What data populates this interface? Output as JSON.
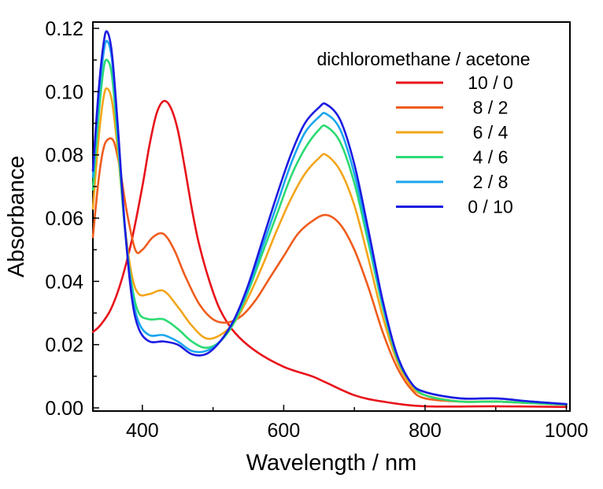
{
  "chart_data": {
    "type": "line",
    "title": "",
    "xlabel": "Wavelength  / nm",
    "ylabel": "Absorbance",
    "xlim": [
      330,
      1005
    ],
    "ylim": [
      -0.001,
      0.122
    ],
    "x_ticks": [
      "400",
      "600",
      "800",
      "1000"
    ],
    "y_ticks": [
      "0.00",
      "0.02",
      "0.04",
      "0.06",
      "0.08",
      "0.10",
      "0.12"
    ],
    "grid": false,
    "legend_title": "dichloromethane / acetone",
    "legend_position": "top-right",
    "series": [
      {
        "name": "10 / 0",
        "color": "#e8121b",
        "points": [
          [
            330,
            0.024
          ],
          [
            340,
            0.026
          ],
          [
            355,
            0.031
          ],
          [
            370,
            0.04
          ],
          [
            385,
            0.053
          ],
          [
            400,
            0.07
          ],
          [
            410,
            0.083
          ],
          [
            420,
            0.093
          ],
          [
            430,
            0.097
          ],
          [
            440,
            0.095
          ],
          [
            450,
            0.088
          ],
          [
            460,
            0.076
          ],
          [
            470,
            0.063
          ],
          [
            480,
            0.052
          ],
          [
            495,
            0.04
          ],
          [
            510,
            0.031
          ],
          [
            530,
            0.024
          ],
          [
            560,
            0.018
          ],
          [
            600,
            0.013
          ],
          [
            640,
            0.01
          ],
          [
            660,
            0.008
          ],
          [
            700,
            0.004
          ],
          [
            740,
            0.002
          ],
          [
            800,
            0.0005
          ],
          [
            900,
            0.0005
          ],
          [
            1000,
            0.0003
          ]
        ]
      },
      {
        "name": "8 / 2",
        "color": "#ef5c1c",
        "points": [
          [
            330,
            0.054
          ],
          [
            338,
            0.072
          ],
          [
            345,
            0.082
          ],
          [
            352,
            0.085
          ],
          [
            360,
            0.084
          ],
          [
            368,
            0.076
          ],
          [
            378,
            0.062
          ],
          [
            390,
            0.05
          ],
          [
            400,
            0.05
          ],
          [
            415,
            0.054
          ],
          [
            430,
            0.055
          ],
          [
            445,
            0.05
          ],
          [
            460,
            0.042
          ],
          [
            480,
            0.033
          ],
          [
            500,
            0.028
          ],
          [
            520,
            0.027
          ],
          [
            540,
            0.029
          ],
          [
            560,
            0.034
          ],
          [
            580,
            0.041
          ],
          [
            600,
            0.048
          ],
          [
            620,
            0.055
          ],
          [
            640,
            0.059
          ],
          [
            660,
            0.061
          ],
          [
            680,
            0.058
          ],
          [
            700,
            0.05
          ],
          [
            720,
            0.038
          ],
          [
            740,
            0.024
          ],
          [
            760,
            0.013
          ],
          [
            780,
            0.006
          ],
          [
            800,
            0.003
          ],
          [
            850,
            0.002
          ],
          [
            900,
            0.002
          ],
          [
            950,
            0.0015
          ],
          [
            1000,
            0.001
          ]
        ]
      },
      {
        "name": "6 / 4",
        "color": "#f3a51a",
        "points": [
          [
            330,
            0.063
          ],
          [
            338,
            0.085
          ],
          [
            345,
            0.098
          ],
          [
            350,
            0.101
          ],
          [
            357,
            0.097
          ],
          [
            365,
            0.082
          ],
          [
            375,
            0.058
          ],
          [
            385,
            0.042
          ],
          [
            395,
            0.036
          ],
          [
            410,
            0.036
          ],
          [
            430,
            0.037
          ],
          [
            450,
            0.032
          ],
          [
            470,
            0.026
          ],
          [
            490,
            0.022
          ],
          [
            510,
            0.023
          ],
          [
            530,
            0.027
          ],
          [
            550,
            0.035
          ],
          [
            570,
            0.045
          ],
          [
            590,
            0.056
          ],
          [
            610,
            0.066
          ],
          [
            630,
            0.074
          ],
          [
            650,
            0.079
          ],
          [
            660,
            0.08
          ],
          [
            680,
            0.075
          ],
          [
            700,
            0.064
          ],
          [
            720,
            0.047
          ],
          [
            740,
            0.029
          ],
          [
            760,
            0.015
          ],
          [
            780,
            0.007
          ],
          [
            800,
            0.004
          ],
          [
            850,
            0.002
          ],
          [
            900,
            0.002
          ],
          [
            950,
            0.0015
          ],
          [
            1000,
            0.001
          ]
        ]
      },
      {
        "name": "4 / 6",
        "color": "#2bdb73",
        "points": [
          [
            330,
            0.069
          ],
          [
            338,
            0.092
          ],
          [
            345,
            0.107
          ],
          [
            350,
            0.11
          ],
          [
            357,
            0.105
          ],
          [
            365,
            0.085
          ],
          [
            375,
            0.057
          ],
          [
            385,
            0.039
          ],
          [
            395,
            0.03
          ],
          [
            410,
            0.028
          ],
          [
            430,
            0.028
          ],
          [
            450,
            0.025
          ],
          [
            470,
            0.021
          ],
          [
            490,
            0.019
          ],
          [
            510,
            0.021
          ],
          [
            530,
            0.027
          ],
          [
            550,
            0.037
          ],
          [
            570,
            0.049
          ],
          [
            590,
            0.061
          ],
          [
            610,
            0.073
          ],
          [
            630,
            0.082
          ],
          [
            650,
            0.088
          ],
          [
            660,
            0.089
          ],
          [
            680,
            0.084
          ],
          [
            700,
            0.071
          ],
          [
            720,
            0.052
          ],
          [
            740,
            0.032
          ],
          [
            760,
            0.016
          ],
          [
            780,
            0.008
          ],
          [
            800,
            0.004
          ],
          [
            850,
            0.002
          ],
          [
            900,
            0.002
          ],
          [
            950,
            0.0015
          ],
          [
            1000,
            0.001
          ]
        ]
      },
      {
        "name": "2 / 8",
        "color": "#1aa6ee",
        "points": [
          [
            330,
            0.073
          ],
          [
            338,
            0.097
          ],
          [
            345,
            0.112
          ],
          [
            350,
            0.116
          ],
          [
            357,
            0.11
          ],
          [
            365,
            0.088
          ],
          [
            375,
            0.058
          ],
          [
            385,
            0.037
          ],
          [
            395,
            0.027
          ],
          [
            410,
            0.023
          ],
          [
            430,
            0.023
          ],
          [
            450,
            0.021
          ],
          [
            470,
            0.018
          ],
          [
            490,
            0.018
          ],
          [
            510,
            0.021
          ],
          [
            530,
            0.028
          ],
          [
            550,
            0.038
          ],
          [
            570,
            0.051
          ],
          [
            590,
            0.064
          ],
          [
            610,
            0.077
          ],
          [
            630,
            0.087
          ],
          [
            650,
            0.092
          ],
          [
            660,
            0.093
          ],
          [
            680,
            0.088
          ],
          [
            700,
            0.074
          ],
          [
            720,
            0.054
          ],
          [
            740,
            0.033
          ],
          [
            760,
            0.017
          ],
          [
            780,
            0.008
          ],
          [
            800,
            0.005
          ],
          [
            850,
            0.003
          ],
          [
            900,
            0.003
          ],
          [
            950,
            0.002
          ],
          [
            1000,
            0.0012
          ]
        ]
      },
      {
        "name": "0 / 10",
        "color": "#1c1be0",
        "points": [
          [
            330,
            0.075
          ],
          [
            338,
            0.1
          ],
          [
            345,
            0.115
          ],
          [
            350,
            0.119
          ],
          [
            357,
            0.112
          ],
          [
            365,
            0.09
          ],
          [
            375,
            0.058
          ],
          [
            385,
            0.035
          ],
          [
            395,
            0.025
          ],
          [
            410,
            0.021
          ],
          [
            430,
            0.021
          ],
          [
            450,
            0.02
          ],
          [
            470,
            0.017
          ],
          [
            490,
            0.017
          ],
          [
            510,
            0.021
          ],
          [
            530,
            0.028
          ],
          [
            550,
            0.039
          ],
          [
            570,
            0.053
          ],
          [
            590,
            0.067
          ],
          [
            610,
            0.08
          ],
          [
            630,
            0.09
          ],
          [
            650,
            0.095
          ],
          [
            660,
            0.096
          ],
          [
            680,
            0.091
          ],
          [
            700,
            0.077
          ],
          [
            720,
            0.056
          ],
          [
            740,
            0.034
          ],
          [
            760,
            0.017
          ],
          [
            780,
            0.008
          ],
          [
            800,
            0.005
          ],
          [
            850,
            0.003
          ],
          [
            900,
            0.003
          ],
          [
            950,
            0.002
          ],
          [
            1000,
            0.0012
          ]
        ]
      }
    ]
  }
}
